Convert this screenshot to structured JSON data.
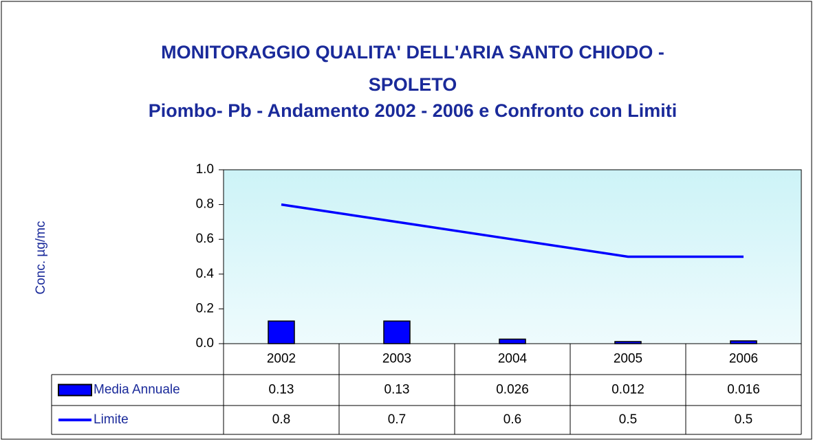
{
  "chart_data": {
    "type": "bar",
    "title": "MONITORAGGIO QUALITA' DELL'ARIA SANTO CHIODO -",
    "title_line2": "SPOLETO",
    "subtitle": "Piombo- Pb - Andamento 2002 - 2006 e Confronto con Limiti",
    "y_label": "Conc. µg/mc",
    "categories": [
      "2002",
      "2003",
      "2004",
      "2005",
      "2006"
    ],
    "series": [
      {
        "name": "Media Annuale",
        "type": "bar",
        "color": "#0000ff",
        "values": [
          0.13,
          0.13,
          0.026,
          0.012,
          0.016
        ]
      },
      {
        "name": "Limite",
        "type": "line",
        "color": "#0000ff",
        "values": [
          0.8,
          0.7,
          0.6,
          0.5,
          0.5
        ]
      }
    ],
    "ylim": [
      0,
      1
    ],
    "yticks": [
      {
        "value": 0,
        "label": "0.0"
      },
      0.2,
      0.4,
      0.6,
      0.8,
      {
        "value": 1,
        "label": "1.0"
      }
    ],
    "data_table": true
  }
}
